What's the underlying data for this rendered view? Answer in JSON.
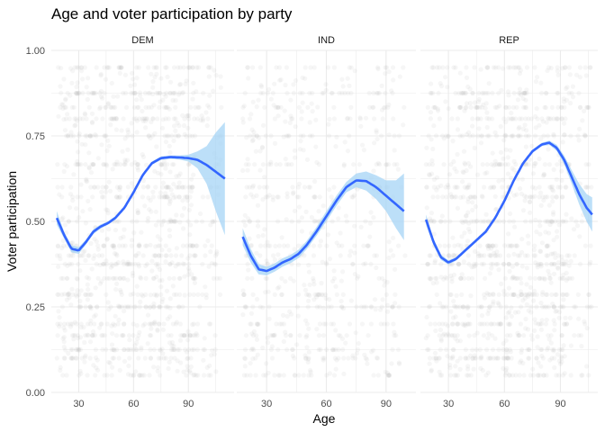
{
  "chart_data": {
    "type": "scatter",
    "title": "Age and voter participation by party",
    "xlabel": "Age",
    "ylabel": "Voter participation",
    "ylim": [
      0,
      1
    ],
    "y_ticks": [
      "0.00",
      "0.25",
      "0.50",
      "0.75",
      "1.00"
    ],
    "x_ticks": [
      "30",
      "60",
      "90"
    ],
    "grid": true,
    "colors": {
      "points": "#b3b3b3",
      "smooth_line": "#3366ff",
      "ribbon": "#a6d4f5",
      "grid": "#ebebeb"
    },
    "panels": [
      {
        "label": "DEM",
        "xlim": [
          15,
          115
        ],
        "point_age_range": [
          18,
          108
        ],
        "smooth": {
          "x": [
            18,
            22,
            26,
            30,
            34,
            38,
            42,
            46,
            50,
            55,
            60,
            65,
            70,
            75,
            80,
            85,
            90,
            95,
            100,
            105,
            110
          ],
          "y": [
            0.51,
            0.46,
            0.42,
            0.415,
            0.44,
            0.47,
            0.485,
            0.495,
            0.51,
            0.54,
            0.585,
            0.635,
            0.67,
            0.685,
            0.688,
            0.687,
            0.685,
            0.68,
            0.665,
            0.645,
            0.625
          ],
          "lower": [
            0.49,
            0.45,
            0.41,
            0.405,
            0.433,
            0.463,
            0.479,
            0.49,
            0.505,
            0.535,
            0.58,
            0.63,
            0.665,
            0.68,
            0.683,
            0.681,
            0.675,
            0.655,
            0.61,
            0.53,
            0.46
          ],
          "upper": [
            0.53,
            0.47,
            0.43,
            0.425,
            0.447,
            0.477,
            0.491,
            0.5,
            0.515,
            0.545,
            0.59,
            0.64,
            0.675,
            0.69,
            0.693,
            0.693,
            0.695,
            0.705,
            0.72,
            0.76,
            0.79
          ]
        }
      },
      {
        "label": "IND",
        "xlim": [
          15,
          105
        ],
        "point_age_range": [
          18,
          100
        ],
        "smooth": {
          "x": [
            18,
            22,
            26,
            30,
            34,
            38,
            42,
            46,
            50,
            55,
            60,
            65,
            70,
            75,
            80,
            85,
            90,
            95,
            99
          ],
          "y": [
            0.455,
            0.4,
            0.36,
            0.355,
            0.365,
            0.38,
            0.39,
            0.405,
            0.43,
            0.47,
            0.515,
            0.56,
            0.6,
            0.62,
            0.618,
            0.6,
            0.575,
            0.55,
            0.53
          ],
          "lower": [
            0.43,
            0.38,
            0.345,
            0.342,
            0.353,
            0.368,
            0.378,
            0.393,
            0.418,
            0.457,
            0.5,
            0.545,
            0.585,
            0.6,
            0.59,
            0.565,
            0.53,
            0.48,
            0.445
          ],
          "upper": [
            0.48,
            0.42,
            0.375,
            0.368,
            0.377,
            0.392,
            0.402,
            0.417,
            0.442,
            0.483,
            0.53,
            0.575,
            0.615,
            0.64,
            0.646,
            0.635,
            0.62,
            0.62,
            0.64
          ]
        }
      },
      {
        "label": "REP",
        "xlim": [
          15,
          110
        ],
        "point_age_range": [
          18,
          107
        ],
        "smooth": {
          "x": [
            18,
            22,
            26,
            30,
            34,
            38,
            42,
            46,
            50,
            55,
            60,
            65,
            70,
            75,
            80,
            84,
            88,
            92,
            96,
            100,
            104,
            107
          ],
          "y": [
            0.505,
            0.44,
            0.395,
            0.38,
            0.39,
            0.41,
            0.43,
            0.45,
            0.47,
            0.51,
            0.56,
            0.62,
            0.67,
            0.705,
            0.725,
            0.73,
            0.715,
            0.68,
            0.63,
            0.58,
            0.54,
            0.52
          ],
          "lower": [
            0.49,
            0.43,
            0.387,
            0.374,
            0.385,
            0.405,
            0.425,
            0.445,
            0.465,
            0.505,
            0.555,
            0.615,
            0.665,
            0.7,
            0.72,
            0.724,
            0.706,
            0.668,
            0.61,
            0.55,
            0.5,
            0.47
          ],
          "upper": [
            0.52,
            0.45,
            0.403,
            0.386,
            0.395,
            0.415,
            0.435,
            0.455,
            0.475,
            0.515,
            0.565,
            0.625,
            0.675,
            0.71,
            0.73,
            0.736,
            0.724,
            0.692,
            0.65,
            0.61,
            0.58,
            0.57
          ]
        }
      }
    ]
  }
}
